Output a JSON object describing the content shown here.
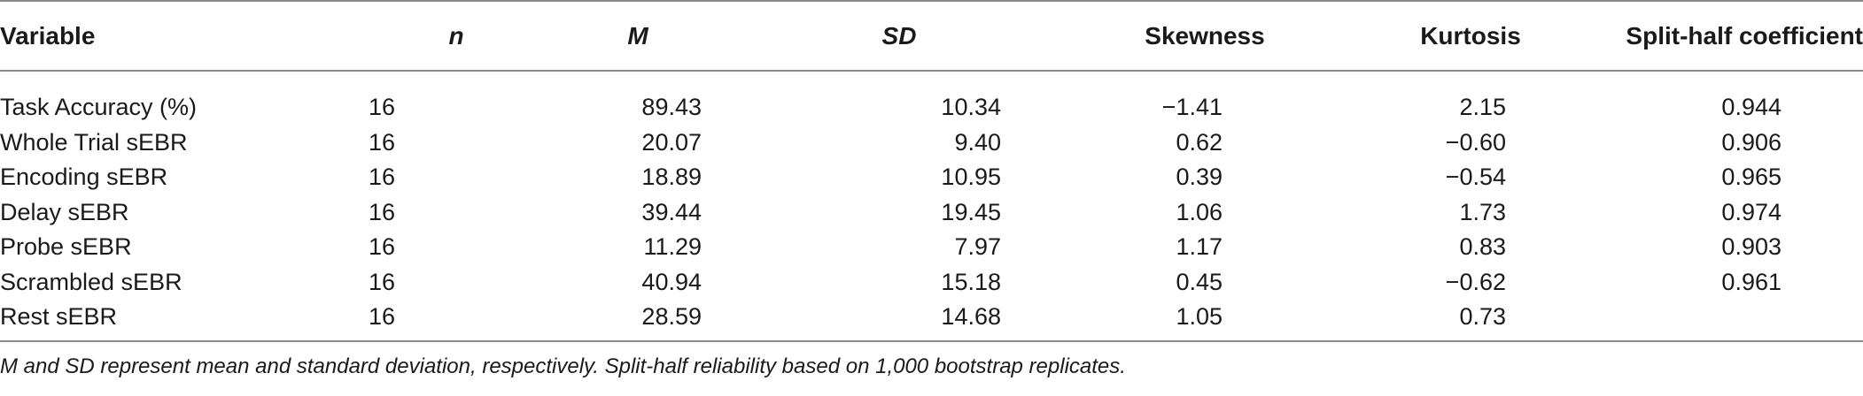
{
  "table": {
    "headers": {
      "variable": "Variable",
      "n": "n",
      "m": "M",
      "sd": "SD",
      "skewness": "Skewness",
      "kurtosis": "Kurtosis",
      "split_half": "Split-half coefficient"
    },
    "rows": [
      {
        "variable": "Task Accuracy (%)",
        "n": "16",
        "m": "89.43",
        "sd": "10.34",
        "skewness": "−1.41",
        "kurtosis": "2.15",
        "split_half": "0.944"
      },
      {
        "variable": "Whole Trial sEBR",
        "n": "16",
        "m": "20.07",
        "sd": "9.40",
        "skewness": "0.62",
        "kurtosis": "−0.60",
        "split_half": "0.906"
      },
      {
        "variable": "Encoding sEBR",
        "n": "16",
        "m": "18.89",
        "sd": "10.95",
        "skewness": "0.39",
        "kurtosis": "−0.54",
        "split_half": "0.965"
      },
      {
        "variable": "Delay sEBR",
        "n": "16",
        "m": "39.44",
        "sd": "19.45",
        "skewness": "1.06",
        "kurtosis": "1.73",
        "split_half": "0.974"
      },
      {
        "variable": "Probe sEBR",
        "n": "16",
        "m": "11.29",
        "sd": "7.97",
        "skewness": "1.17",
        "kurtosis": "0.83",
        "split_half": "0.903"
      },
      {
        "variable": "Scrambled sEBR",
        "n": "16",
        "m": "40.94",
        "sd": "15.18",
        "skewness": "0.45",
        "kurtosis": "−0.62",
        "split_half": "0.961"
      },
      {
        "variable": "Rest sEBR",
        "n": "16",
        "m": "28.59",
        "sd": "14.68",
        "skewness": "1.05",
        "kurtosis": "0.73",
        "split_half": ""
      }
    ],
    "footnote": "M and SD represent mean and standard deviation, respectively. Split-half reliability based on 1,000 bootstrap replicates."
  }
}
